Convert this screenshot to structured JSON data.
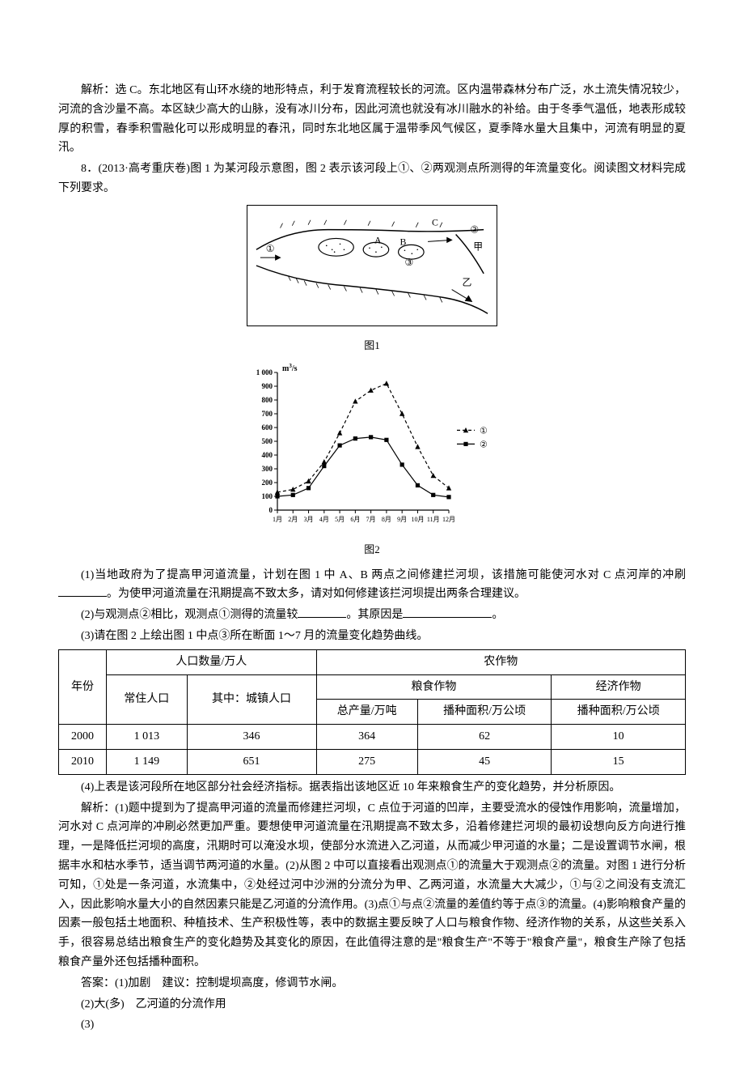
{
  "analysis7": "解析：选 C。东北地区有山环水绕的地形特点，利于发育流程较长的河流。区内温带森林分布广泛，水土流失情况较少，河流的含沙量不高。本区缺少高大的山脉，没有冰川分布，因此河流也就没有冰川融水的补给。由于冬季气温低，地表形成较厚的积雪，春季积雪融化可以形成明显的春汛，同时东北地区属于温带季风气候区，夏季降水量大且集中，河流有明显的夏汛。",
  "q8_stem": "8．(2013·高考重庆卷)图 1 为某河段示意图，图 2 表示该河段上①、②两观测点所测得的年流量变化。阅读图文材料完成下列要求。",
  "fig1": {
    "caption": "图1",
    "labels": {
      "c1": "①",
      "c2": "②",
      "c3": "③",
      "A": "A",
      "B": "B",
      "C": "C",
      "jia": "甲",
      "yi": "乙"
    }
  },
  "fig2": {
    "caption": "图2",
    "ylabel": "m³/s",
    "ylim": [
      0,
      1000
    ],
    "yticks": [
      0,
      100,
      200,
      300,
      400,
      500,
      600,
      700,
      800,
      900,
      1000
    ],
    "xlabels": [
      "1月",
      "2月",
      "3月",
      "4月",
      "5月",
      "6月",
      "7月",
      "8月",
      "9月",
      "10月",
      "11月",
      "12月"
    ],
    "series": [
      {
        "name": "①",
        "marker": "triangle",
        "dash": true,
        "color": "#000000",
        "values": [
          130,
          150,
          210,
          350,
          560,
          790,
          870,
          920,
          700,
          460,
          250,
          160
        ]
      },
      {
        "name": "②",
        "marker": "square",
        "dash": false,
        "color": "#000000",
        "values": [
          100,
          110,
          160,
          320,
          470,
          520,
          530,
          510,
          330,
          180,
          110,
          95
        ]
      }
    ],
    "legend_items": [
      "①",
      "②"
    ]
  },
  "q8_1a": "(1)当地政府为了提高甲河道流量，计划在图 1 中 A、B 两点之间修建拦河坝，该措施可能使河水对 C 点河岸的冲刷",
  "q8_1b": "。为使甲河道流量在汛期提高不致太多，请对如何修建该拦河坝提出两条合理建议。",
  "q8_2a": "(2)与观测点②相比，观测点①测得的流量较",
  "q8_2b": "。其原因是",
  "q8_2c": "。",
  "q8_3": "(3)请在图 2 上绘出图 1 中点③所在断面 1～7 月的流量变化趋势曲线。",
  "table": {
    "headers": {
      "year": "年份",
      "pop": "人口数量/万人",
      "crop": "农作物",
      "resident": "常住人口",
      "urban": "其中：城镇人口",
      "grain": "粮食作物",
      "econ": "经济作物",
      "total": "总产量/万吨",
      "sow1": "播种面积/万公顷",
      "sow2": "播种面积/万公顷"
    },
    "rows": [
      {
        "year": "2000",
        "resident": "1 013",
        "urban": "346",
        "total": "364",
        "sow1": "62",
        "sow2": "10"
      },
      {
        "year": "2010",
        "resident": "1 149",
        "urban": "651",
        "total": "275",
        "sow1": "45",
        "sow2": "15"
      }
    ]
  },
  "q8_4": "(4)上表是该河段所在地区部分社会经济指标。据表指出该地区近 10 年来粮食生产的变化趋势，并分析原因。",
  "analysis8": "解析：(1)题中提到为了提高甲河道的流量而修建拦河坝，C 点位于河道的凹岸，主要受流水的侵蚀作用影响，流量增加，河水对 C 点河岸的冲刷必然更加严重。要想使甲河道流量在汛期提高不致太多，沿着修建拦河坝的最初设想向反方向进行推理，一是降低拦河坝的高度，汛期时可以淹没水坝，使部分水流进入乙河道，从而减少甲河道的水量；二是设置调节水闸，根据丰水和枯水季节，适当调节两河道的水量。(2)从图 2 中可以直接看出观测点①的流量大于观测点②的流量。对图 1 进行分析可知，①处是一条河道，水流集中，②处经过河中沙洲的分流分为甲、乙两河道，水流量大大减少，①与②之间没有支流汇入，因此影响水量大小的自然因素只能是乙河道的分流作用。(3)点①与点②流量的差值约等于点③的流量。(4)影响粮食产量的因素一般包括土地面积、种植技术、生产积极性等，表中的数据主要反映了人口与粮食作物、经济作物的关系，从这些关系入手，很容易总结出粮食生产的变化趋势及其变化的原因，在此值得注意的是\"粮食生产\"不等于\"粮食产量\"，粮食生产除了包括粮食产量外还包括播种面积。",
  "ans1": "答案：(1)加剧　建议：控制堤坝高度，修调节水闸。",
  "ans2": "(2)大(多)　乙河道的分流作用",
  "ans3": "(3)"
}
